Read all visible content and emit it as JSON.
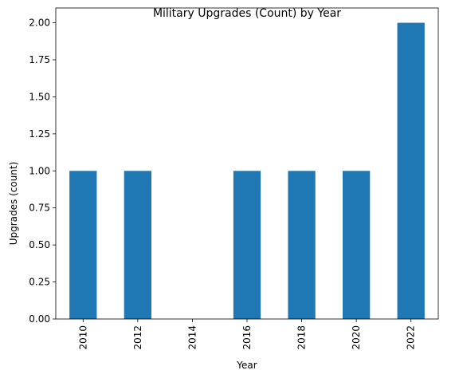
{
  "chart_data": {
    "type": "bar",
    "title": "Military Upgrades (Count) by Year",
    "xlabel": "Year",
    "ylabel": "Upgrades (count)",
    "categories": [
      "2010",
      "2012",
      "2014",
      "2016",
      "2018",
      "2020",
      "2022"
    ],
    "values": [
      1,
      1,
      0,
      1,
      1,
      1,
      2
    ],
    "ylim": [
      0,
      2.1
    ],
    "yticks": [
      "0.00",
      "0.25",
      "0.50",
      "0.75",
      "1.00",
      "1.25",
      "1.50",
      "1.75",
      "2.00"
    ],
    "grid": false,
    "legend": "none",
    "bar_color": "#1f77b4"
  }
}
